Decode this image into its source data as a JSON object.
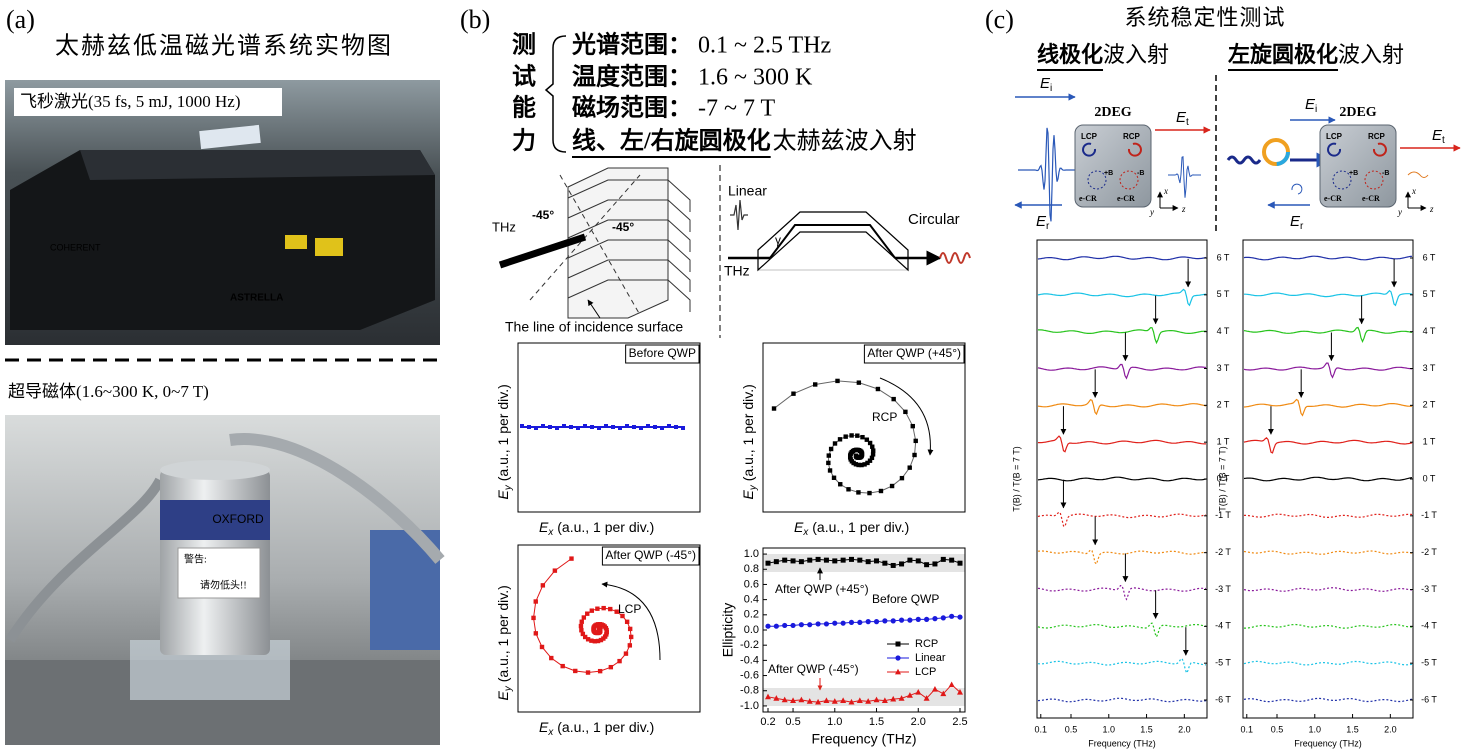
{
  "panel_a": {
    "label": "(a)",
    "title": "太赫兹低温磁光谱系统实物图",
    "laser": {
      "caption": "飞秒激光(35 fs, 5 mJ, 1000 Hz)",
      "brand": "COHERENT",
      "model": "ASTRELLA"
    },
    "magnet": {
      "caption": "超导磁体(1.6~300 K, 0~7 T)",
      "brand": "OXFORD",
      "sign_title": "警告:",
      "sign_text": "请勿低头!!"
    }
  },
  "panel_b": {
    "label": "(b)",
    "heading": [
      "测",
      "试",
      "能",
      "力"
    ],
    "capabilities": [
      {
        "name": "光谱范围：",
        "value": "0.1 ~ 2.5 THz"
      },
      {
        "name": "温度范围：",
        "value": "1.6 ~ 300 K"
      },
      {
        "name": "磁场范围：",
        "value": "-7 ~ 7 T"
      },
      {
        "name": "线、左/右旋圆极化",
        "value": "太赫兹波入射"
      }
    ],
    "prism": {
      "source": "THz",
      "angle_left": "-45°",
      "angle_right": "-45°",
      "caption": "The line of incidence surface"
    },
    "rhomb": {
      "input": "Linear",
      "source": "THz",
      "angle": "γ",
      "output": "Circular"
    },
    "axis_symbol": "E",
    "x_sub": "x",
    "y_sub": "y",
    "axis_unit": "(a.u., 1 per div.)",
    "plots": [
      {
        "title": "Before QWP"
      },
      {
        "title": "After QWP (+45°)",
        "note": "RCP"
      },
      {
        "title": "After QWP (-45°)",
        "note": "LCP"
      }
    ]
  },
  "panel_c": {
    "label": "(c)",
    "title": "系统稳定性测试",
    "columns": [
      {
        "heading_bold": "线极化",
        "heading_rest": "波入射"
      },
      {
        "heading_bold": "左旋圆极化",
        "heading_rest": "波入射"
      }
    ],
    "field_symbol": "E",
    "sub_i": "i",
    "sub_t": "t",
    "sub_r": "r",
    "sample": "2DEG",
    "lcp": "LCP",
    "rcp": "RCP",
    "plus_b": "+B",
    "minus_b": "-B",
    "ecr": "e-CR",
    "axis_labels": [
      "x",
      "y",
      "z"
    ]
  },
  "chart_data": [
    {
      "type": "line",
      "x_label": "Frequency (THz)",
      "y_label": "Ellipticity",
      "xlim": [
        0.2,
        2.5
      ],
      "ylim": [
        -1.08,
        1.08
      ],
      "xticks": [
        0.2,
        0.5,
        {
          "value": 1,
          "label": "1.0"
        },
        1.5,
        {
          "value": 2,
          "label": "2.0"
        },
        2.5
      ],
      "yticks": [
        {
          "value": -1,
          "label": "-1.0"
        },
        -0.8,
        -0.6,
        -0.4,
        -0.2,
        {
          "value": 0,
          "label": "0.0"
        },
        0.2,
        0.4,
        0.6,
        0.8,
        {
          "value": 1,
          "label": "1.0"
        }
      ],
      "x": [
        0.2,
        0.3,
        0.4,
        0.5,
        0.6,
        0.7,
        0.8,
        0.9,
        1.0,
        1.1,
        1.2,
        1.3,
        1.4,
        1.5,
        1.6,
        1.7,
        1.8,
        1.9,
        2.0,
        2.1,
        2.2,
        2.3,
        2.4,
        2.5
      ],
      "series": [
        {
          "name": "RCP",
          "color": "#000000",
          "marker": "square",
          "values": [
            0.88,
            0.9,
            0.92,
            0.91,
            0.9,
            0.92,
            0.93,
            0.92,
            0.91,
            0.92,
            0.93,
            0.92,
            0.9,
            0.91,
            0.88,
            0.85,
            0.87,
            0.92,
            0.91,
            0.86,
            0.87,
            0.93,
            0.92,
            0.88
          ]
        },
        {
          "name": "Linear",
          "color": "#1a1adc",
          "marker": "circle",
          "values": [
            0.05,
            0.05,
            0.06,
            0.06,
            0.07,
            0.07,
            0.08,
            0.08,
            0.09,
            0.09,
            0.1,
            0.1,
            0.11,
            0.11,
            0.12,
            0.12,
            0.13,
            0.13,
            0.14,
            0.14,
            0.15,
            0.16,
            0.18,
            0.17
          ]
        },
        {
          "name": "LCP",
          "color": "#e01818",
          "marker": "triangle",
          "values": [
            -0.88,
            -0.9,
            -0.92,
            -0.93,
            -0.92,
            -0.94,
            -0.95,
            -0.93,
            -0.94,
            -0.93,
            -0.95,
            -0.93,
            -0.94,
            -0.92,
            -0.93,
            -0.91,
            -0.9,
            -0.86,
            -0.82,
            -0.9,
            -0.78,
            -0.84,
            -0.72,
            -0.82
          ]
        }
      ],
      "annotations": [
        "After QWP (+45°)",
        "Before QWP",
        "After QWP (-45°)"
      ],
      "legend": "lower right"
    },
    {
      "type": "spectra",
      "x_label": "Frequency (THz)",
      "y_label": "T(B) / T(B = 7 T)",
      "xlim": [
        0.05,
        2.3
      ],
      "xticks": [
        0.1,
        0.5,
        {
          "value": 1,
          "label": "1.0"
        },
        1.5,
        {
          "value": 2,
          "label": "2.0"
        }
      ],
      "categories": [
        "6 T",
        "5 T",
        "4 T",
        "3 T",
        "2 T",
        "1 T",
        "0 T",
        "-1 T",
        "-2 T",
        "-3 T",
        "-4 T",
        "-5 T",
        "-6 T"
      ],
      "values": [
        null,
        2.05,
        1.62,
        1.22,
        0.82,
        0.4,
        null,
        0.4,
        0.82,
        1.22,
        1.62,
        2.02,
        null
      ],
      "colors": [
        "#1f2fa8",
        "#19c3e6",
        "#27c41c",
        "#8a1a9b",
        "#f08a12",
        "#e0201a",
        "#000000",
        "#e0201a",
        "#f08a12",
        "#8a1a9b",
        "#27c41c",
        "#19c3e6",
        "#1f2fa8"
      ],
      "dashed": [
        false,
        false,
        false,
        false,
        false,
        false,
        false,
        true,
        true,
        true,
        true,
        true,
        true
      ]
    },
    {
      "type": "spectra",
      "x_label": "Frequency (THz)",
      "y_label": "T(B) / T(B = 7 T)",
      "xlim": [
        0.05,
        2.3
      ],
      "xticks": [
        0.1,
        0.5,
        {
          "value": 1,
          "label": "1.0"
        },
        1.5,
        {
          "value": 2,
          "label": "2.0"
        }
      ],
      "categories": [
        "6 T",
        "5 T",
        "4 T",
        "3 T",
        "2 T",
        "1 T",
        "0 T",
        "-1 T",
        "-2 T",
        "-3 T",
        "-4 T",
        "-5 T",
        "-6 T"
      ],
      "values": [
        null,
        2.05,
        1.62,
        1.22,
        0.82,
        0.42,
        null,
        null,
        null,
        null,
        null,
        null,
        null
      ],
      "colors": [
        "#1f2fa8",
        "#19c3e6",
        "#27c41c",
        "#8a1a9b",
        "#f08a12",
        "#e0201a",
        "#000000",
        "#e0201a",
        "#f08a12",
        "#8a1a9b",
        "#27c41c",
        "#19c3e6",
        "#1f2fa8"
      ],
      "dashed": [
        false,
        false,
        false,
        false,
        false,
        false,
        false,
        true,
        true,
        true,
        true,
        true,
        true
      ]
    }
  ]
}
